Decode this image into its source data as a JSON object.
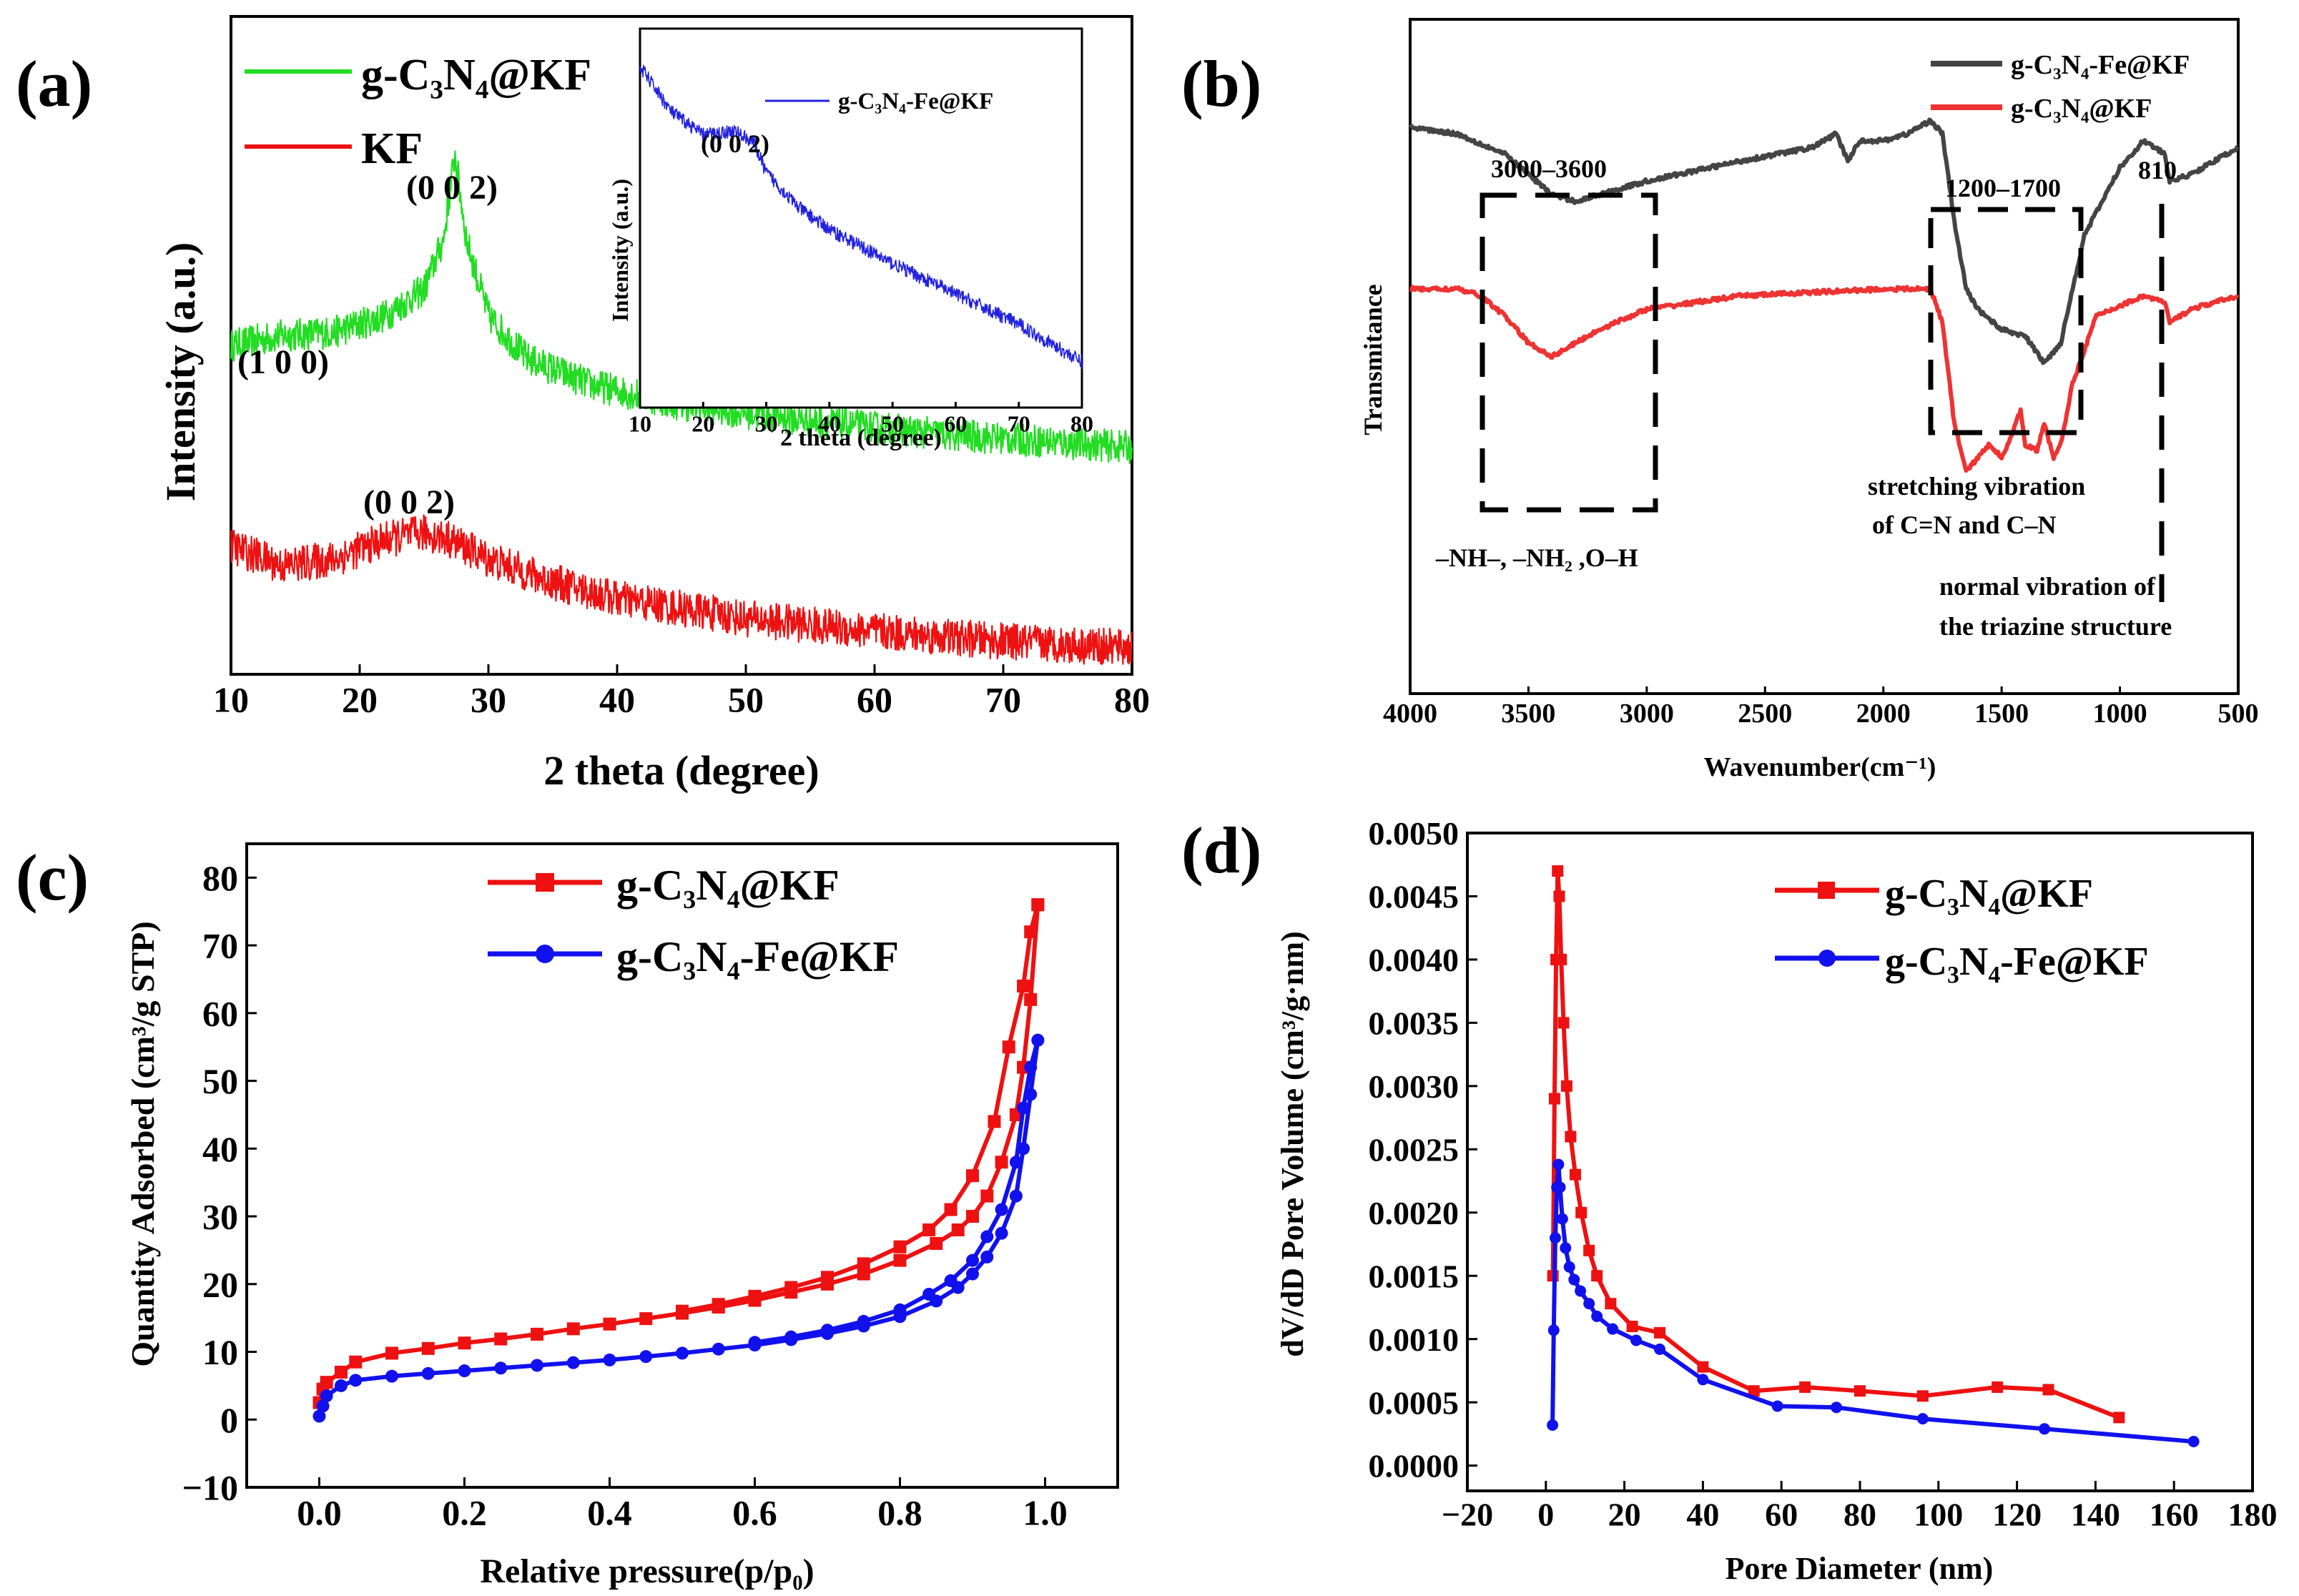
{
  "figure": {
    "panels": [
      {
        "id": "a",
        "label": "(a)"
      },
      {
        "id": "b",
        "label": "(b)"
      },
      {
        "id": "c",
        "label": "(c)"
      },
      {
        "id": "d",
        "label": "(d)"
      }
    ]
  },
  "chart_data": [
    {
      "panel": "a",
      "type": "line",
      "title": "",
      "xlabel": "2 theta (degree)",
      "ylabel": "Intensity (a.u.)",
      "xlim": [
        10,
        80
      ],
      "xticks": [
        "10",
        "20",
        "30",
        "40",
        "50",
        "60",
        "70",
        "80"
      ],
      "legend": [
        {
          "text": "g-C₃N₄@KF",
          "color": "#22dd22"
        },
        {
          "text": "KF",
          "color": "#ee1111"
        }
      ],
      "series": [
        {
          "name": "g-C3N4@KF",
          "color": "#22dd22",
          "x": [
            10,
            14,
            18,
            22,
            25,
            26.5,
            27.4,
            28.3,
            30,
            33,
            38,
            45,
            55,
            65,
            80
          ],
          "y": [
            0.5,
            0.515,
            0.52,
            0.545,
            0.585,
            0.66,
            0.79,
            0.66,
            0.545,
            0.48,
            0.44,
            0.41,
            0.385,
            0.365,
            0.345
          ]
        },
        {
          "name": "KF",
          "color": "#ee1111",
          "x": [
            10,
            14,
            18,
            22,
            25,
            27,
            30,
            35,
            40,
            50,
            60,
            70,
            80
          ],
          "y": [
            0.195,
            0.165,
            0.175,
            0.205,
            0.215,
            0.205,
            0.175,
            0.14,
            0.115,
            0.085,
            0.065,
            0.05,
            0.04
          ]
        }
      ],
      "annotations": [
        "(1 0 0)",
        "(0 0 2)",
        "(0 0 2)"
      ],
      "inset": {
        "xlabel": "2 theta (degree)",
        "ylabel": "Intensity (a.u.)",
        "xlim": [
          10,
          80
        ],
        "xticks": [
          "10",
          "20",
          "30",
          "40",
          "50",
          "60",
          "70",
          "80"
        ],
        "legend": "g-C₃N₄-Fe@KF",
        "annotation": "(0 0 2)",
        "series": [
          {
            "name": "g-C3N4-Fe@KF",
            "color": "#2222dd",
            "x": [
              10,
              15,
              20,
              25,
              28,
              30,
              35,
              40,
              50,
              60,
              70,
              80
            ],
            "y": [
              0.9,
              0.78,
              0.72,
              0.73,
              0.7,
              0.62,
              0.53,
              0.47,
              0.38,
              0.3,
              0.22,
              0.12
            ]
          }
        ]
      }
    },
    {
      "panel": "b",
      "type": "line",
      "title": "",
      "xlabel": "Wavenumber(cm⁻¹)",
      "ylabel": "Transmitance",
      "xlim": [
        4000,
        500
      ],
      "xticks": [
        "4000",
        "3500",
        "3000",
        "2500",
        "2000",
        "1500",
        "1000",
        "500"
      ],
      "legend": [
        {
          "text": "g-C₃N₄-Fe@KF",
          "color": "#444444"
        },
        {
          "text": "g-C₃N₄@KF",
          "color": "#ee3333"
        }
      ],
      "series": [
        {
          "name": "g-C3N4-Fe@KF",
          "color": "#444444",
          "x": [
            4000,
            3800,
            3600,
            3400,
            3300,
            3200,
            3000,
            2600,
            2300,
            2200,
            2150,
            2100,
            2000,
            1900,
            1800,
            1750,
            1700,
            1650,
            1600,
            1500,
            1400,
            1320,
            1250,
            1150,
            1000,
            900,
            810,
            790,
            700,
            500
          ],
          "y": [
            0.84,
            0.83,
            0.8,
            0.74,
            0.73,
            0.74,
            0.76,
            0.79,
            0.81,
            0.83,
            0.79,
            0.82,
            0.82,
            0.83,
            0.85,
            0.83,
            0.7,
            0.6,
            0.57,
            0.54,
            0.53,
            0.49,
            0.52,
            0.68,
            0.78,
            0.82,
            0.8,
            0.76,
            0.77,
            0.81
          ]
        },
        {
          "name": "g-C3N4@KF",
          "color": "#ee3333",
          "x": [
            4000,
            3800,
            3700,
            3600,
            3500,
            3400,
            3300,
            3200,
            3000,
            2600,
            2000,
            1800,
            1750,
            1700,
            1650,
            1600,
            1550,
            1500,
            1450,
            1420,
            1400,
            1350,
            1320,
            1280,
            1250,
            1200,
            1100,
            900,
            810,
            790,
            700,
            500
          ],
          "y": [
            0.6,
            0.6,
            0.59,
            0.56,
            0.52,
            0.5,
            0.52,
            0.54,
            0.57,
            0.59,
            0.6,
            0.6,
            0.55,
            0.4,
            0.33,
            0.35,
            0.37,
            0.35,
            0.39,
            0.42,
            0.37,
            0.36,
            0.4,
            0.35,
            0.37,
            0.46,
            0.56,
            0.59,
            0.58,
            0.55,
            0.57,
            0.59
          ]
        }
      ],
      "annotations": [
        "3000–3600",
        "1200–1700",
        "810",
        "–NH–, –NH₂ ,O–H",
        "stretching vibration",
        "of  C=N and C–N",
        "normal vibration of",
        "the triazine structure"
      ]
    },
    {
      "panel": "c",
      "type": "line",
      "title": "",
      "xlabel": "Relative pressure(p/p₀)",
      "ylabel": "Quantity Adsorbed (cm³/g STP)",
      "xlim": [
        -0.1,
        1.1
      ],
      "ylim": [
        -10,
        85
      ],
      "xticks": [
        "0.0",
        "0.2",
        "0.4",
        "0.6",
        "0.8",
        "1.0"
      ],
      "yticks": [
        "−10",
        "0",
        "10",
        "20",
        "30",
        "40",
        "50",
        "60",
        "70",
        "80"
      ],
      "legend": [
        {
          "text": "g-C₃N₄@KF",
          "color": "#ee1111"
        },
        {
          "text": "g-C₃N₄-Fe@KF",
          "color": "#1111ee"
        }
      ],
      "series": [
        {
          "name": "g-C3N4@KF adsorption",
          "color": "#ee1111",
          "x": [
            0.0,
            0.005,
            0.01,
            0.03,
            0.05,
            0.1,
            0.15,
            0.2,
            0.25,
            0.3,
            0.35,
            0.4,
            0.45,
            0.5,
            0.55,
            0.6,
            0.65,
            0.7,
            0.75,
            0.8,
            0.85,
            0.88,
            0.9,
            0.92,
            0.94,
            0.96,
            0.97,
            0.98,
            0.99
          ],
          "y": [
            2.5,
            4.5,
            5.5,
            7.0,
            8.5,
            9.8,
            10.5,
            11.3,
            11.9,
            12.6,
            13.4,
            14.1,
            14.9,
            15.7,
            16.6,
            17.6,
            18.8,
            20.0,
            21.5,
            23.5,
            26.0,
            28.0,
            30.0,
            33.0,
            38.0,
            45.0,
            52.0,
            62.0,
            76.0
          ]
        },
        {
          "name": "g-C3N4@KF desorption",
          "color": "#ee1111",
          "x": [
            0.99,
            0.98,
            0.97,
            0.95,
            0.93,
            0.9,
            0.87,
            0.84,
            0.8,
            0.75,
            0.7,
            0.65,
            0.6,
            0.55,
            0.5
          ],
          "y": [
            76.0,
            72.0,
            64.0,
            55.0,
            44.0,
            36.0,
            31.0,
            28.0,
            25.5,
            23.0,
            21.0,
            19.5,
            18.2,
            17.0,
            16.0
          ]
        },
        {
          "name": "g-C3N4-Fe@KF adsorption",
          "color": "#1111ee",
          "x": [
            0.0,
            0.005,
            0.01,
            0.03,
            0.05,
            0.1,
            0.15,
            0.2,
            0.25,
            0.3,
            0.35,
            0.4,
            0.45,
            0.5,
            0.55,
            0.6,
            0.65,
            0.7,
            0.75,
            0.8,
            0.85,
            0.88,
            0.9,
            0.92,
            0.94,
            0.96,
            0.97,
            0.98,
            0.99
          ],
          "y": [
            0.5,
            2.0,
            3.5,
            5.0,
            5.8,
            6.4,
            6.8,
            7.2,
            7.6,
            8.0,
            8.4,
            8.8,
            9.3,
            9.8,
            10.4,
            11.0,
            11.8,
            12.7,
            13.8,
            15.2,
            17.5,
            19.5,
            21.5,
            24.0,
            27.5,
            33.0,
            40.0,
            48.0,
            56.0
          ]
        },
        {
          "name": "g-C3N4-Fe@KF desorption",
          "color": "#1111ee",
          "x": [
            0.99,
            0.98,
            0.97,
            0.96,
            0.94,
            0.92,
            0.9,
            0.87,
            0.84,
            0.8,
            0.75,
            0.7,
            0.65,
            0.6
          ],
          "y": [
            56.0,
            52.0,
            46.0,
            38.0,
            31.0,
            27.0,
            23.5,
            20.5,
            18.5,
            16.2,
            14.5,
            13.2,
            12.2,
            11.4
          ]
        }
      ]
    },
    {
      "panel": "d",
      "type": "line",
      "title": "",
      "xlabel": "Pore Diameter (nm)",
      "ylabel": "dV/dD Pore Volume (cm³/g·nm)",
      "xlim": [
        -20,
        180
      ],
      "ylim": [
        -0.0002,
        0.005
      ],
      "xticks": [
        "−20",
        "0",
        "20",
        "40",
        "60",
        "80",
        "100",
        "120",
        "140",
        "160",
        "180"
      ],
      "yticks": [
        "0.0000",
        "0.0005",
        "0.0010",
        "0.0015",
        "0.0020",
        "0.0025",
        "0.0030",
        "0.0035",
        "0.0040",
        "0.0045",
        "0.0050"
      ],
      "legend": [
        {
          "text": "g-C₃N₄@KF",
          "color": "#ee1111"
        },
        {
          "text": "g-C₃N₄-Fe@KF",
          "color": "#1111ee"
        }
      ],
      "series": [
        {
          "name": "g-C3N4@KF",
          "color": "#ee1111",
          "x": [
            1.8,
            2.2,
            2.6,
            3.0,
            3.4,
            3.9,
            4.5,
            5.3,
            6.3,
            7.5,
            9.0,
            11.0,
            13.0,
            16.5,
            22.0,
            29.0,
            40.0,
            53.0,
            66.0,
            80.0,
            96.0,
            115.0,
            128.0,
            146.0
          ],
          "y": [
            0.0015,
            0.0029,
            0.004,
            0.0047,
            0.0045,
            0.004,
            0.0035,
            0.003,
            0.0026,
            0.0023,
            0.002,
            0.0017,
            0.0015,
            0.00128,
            0.0011,
            0.00105,
            0.00078,
            0.00059,
            0.00062,
            0.00059,
            0.00055,
            0.00062,
            0.0006,
            0.00038
          ]
        },
        {
          "name": "g-C3N4-Fe@KF",
          "color": "#1111ee",
          "x": [
            1.7,
            2.0,
            2.4,
            2.8,
            3.2,
            3.6,
            4.2,
            5.0,
            6.0,
            7.2,
            8.8,
            11.0,
            13.0,
            17.0,
            23.0,
            29.0,
            40.0,
            59.0,
            74.0,
            96.0,
            127.0,
            165.0
          ],
          "y": [
            0.00032,
            0.00107,
            0.0018,
            0.0022,
            0.00238,
            0.0022,
            0.00195,
            0.00172,
            0.00157,
            0.00147,
            0.00138,
            0.00128,
            0.00118,
            0.00108,
            0.00099,
            0.00092,
            0.00068,
            0.00047,
            0.00046,
            0.00037,
            0.00029,
            0.00019
          ]
        }
      ]
    }
  ]
}
